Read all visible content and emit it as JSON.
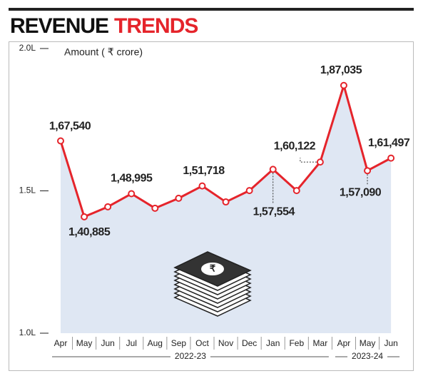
{
  "chart_data": {
    "type": "area-line",
    "title": "REVENUE",
    "title_accent": "TRENDS",
    "y_label": "Amount ( ₹ crore)",
    "categories": [
      "Apr",
      "May",
      "Jun",
      "Jul",
      "Aug",
      "Sep",
      "Oct",
      "Nov",
      "Dec",
      "Jan",
      "Feb",
      "Mar",
      "Apr",
      "May",
      "Jun"
    ],
    "groups": [
      "2022-23",
      "2023-24"
    ],
    "values": [
      167540,
      140885,
      144400,
      148995,
      143900,
      147400,
      151718,
      146100,
      150100,
      157554,
      150100,
      160122,
      187035,
      157090,
      161497
    ],
    "value_labels": [
      "1,67,540",
      "1,40,885",
      null,
      "1,48,995",
      null,
      null,
      "1,51,718",
      null,
      null,
      "1,57,554",
      null,
      "1,60,122",
      "1,87,035",
      "1,57,090",
      "1,61,497"
    ],
    "color": "#e5242b",
    "fill": "#dfe7f3",
    "ylim": [
      100000,
      200000
    ],
    "yticks": [
      {
        "value": 100000,
        "label": "1.0L"
      },
      {
        "value": 150000,
        "label": "1.5L"
      },
      {
        "value": 200000,
        "label": "2.0L"
      }
    ]
  }
}
